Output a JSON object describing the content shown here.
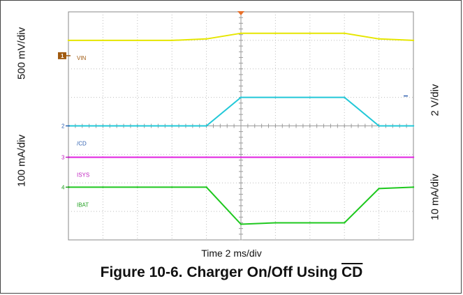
{
  "chart_data": {
    "type": "line",
    "title": "",
    "caption": {
      "prefix": "Figure 10-6. Charger On/Off Using ",
      "overlined": "CD"
    },
    "xlabel": "Time 2 ms/div",
    "scale_labels": {
      "top_left": "500 mV/div",
      "bottom_left": "100 mA/div",
      "top_right": "2 V/div",
      "bottom_right": "10 mA/div"
    },
    "x_divisions": 10,
    "y_divisions": 8,
    "x": [
      0,
      1,
      2,
      3,
      4,
      5,
      6,
      7,
      8,
      9,
      10
    ],
    "series": [
      {
        "name": "VIN",
        "marker": "1",
        "channel_color": "#e6e600",
        "values_div": [
          3.0,
          3.0,
          3.0,
          3.0,
          3.05,
          3.25,
          3.25,
          3.25,
          3.25,
          3.05,
          3.0
        ]
      },
      {
        "name": "/CD",
        "marker": "2",
        "channel_color": "#22c8d8",
        "values_div": [
          0.0,
          0.0,
          0.0,
          0.0,
          0.0,
          1.0,
          1.0,
          1.0,
          1.0,
          0.0,
          0.0
        ]
      },
      {
        "name": "ISYS",
        "marker": "3",
        "channel_color": "#e020e0",
        "values_div": [
          -1.1,
          -1.1,
          -1.1,
          -1.1,
          -1.1,
          -1.1,
          -1.1,
          -1.1,
          -1.1,
          -1.1,
          -1.1
        ]
      },
      {
        "name": "IBAT",
        "marker": "4",
        "channel_color": "#1ec81e",
        "values_div": [
          -2.15,
          -2.15,
          -2.15,
          -2.15,
          -2.15,
          -3.45,
          -3.4,
          -3.4,
          -3.4,
          -2.2,
          -2.15
        ]
      }
    ]
  },
  "marker_colors": {
    "ch1": "#a05a10",
    "ch2": "#3060b0",
    "ch3": "#c020c0",
    "ch4": "#20a020"
  }
}
